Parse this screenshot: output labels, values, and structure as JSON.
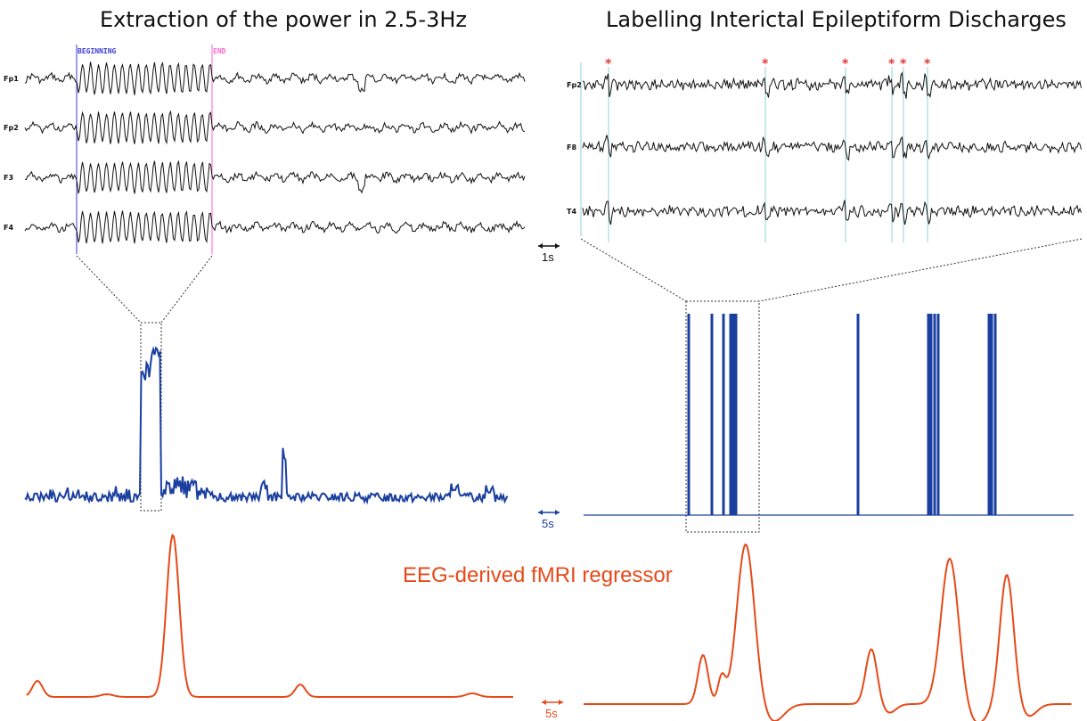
{
  "titles": {
    "left": "Extraction of the power in 2.5-3Hz",
    "right": "Labelling Interictal Epileptiform Discharges"
  },
  "regressor_label": "EEG-derived fMRI regressor",
  "left_panel": {
    "channels": [
      "Fp1",
      "Fp2",
      "F3",
      "F4"
    ],
    "markers": {
      "beginning": "BEGINNING",
      "end": "END"
    }
  },
  "right_panel": {
    "channels": [
      "Fp2",
      "F8",
      "T4"
    ],
    "spike_marker": "*"
  },
  "scales": {
    "eeg": "1s",
    "power": "5s",
    "regressor": "5s"
  },
  "colors": {
    "eeg_trace": "#111111",
    "power_trace": "#1a3fa0",
    "regressor": "#e64a19",
    "spike_lines": "#8fd3d8",
    "beginning_marker": "#3b3bd6",
    "end_marker": "#ff66cc",
    "asterisk": "#e53935"
  }
}
